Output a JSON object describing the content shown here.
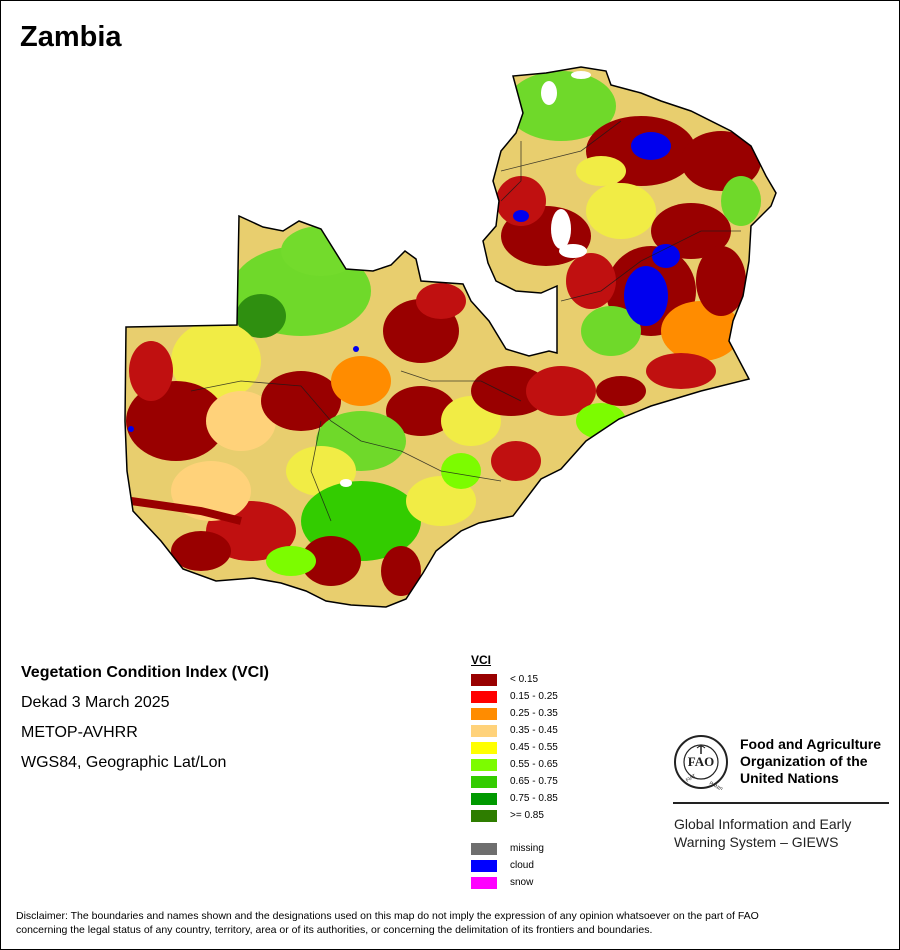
{
  "country": "Zambia",
  "info": {
    "index_name": "Vegetation Condition Index (VCI)",
    "period": "Dekad 3 March 2025",
    "sensor": "METOP-AVHRR",
    "projection": "WGS84, Geographic Lat/Lon"
  },
  "legend": {
    "title": "VCI",
    "classes": [
      {
        "label": "< 0.15",
        "color": "#990000"
      },
      {
        "label": "0.15 - 0.25",
        "color": "#ff0000"
      },
      {
        "label": "0.25 - 0.35",
        "color": "#ff8c00"
      },
      {
        "label": "0.35 - 0.45",
        "color": "#ffd27a"
      },
      {
        "label": "0.45 - 0.55",
        "color": "#ffff00"
      },
      {
        "label": "0.55 - 0.65",
        "color": "#7cfc00"
      },
      {
        "label": "0.65 - 0.75",
        "color": "#33cc00"
      },
      {
        "label": "0.75 - 0.85",
        "color": "#009900"
      },
      {
        "label": ">= 0.85",
        "color": "#2e7d00"
      }
    ],
    "special": [
      {
        "label": "missing",
        "color": "#6e6e6e"
      },
      {
        "label": "cloud",
        "color": "#0000ff"
      },
      {
        "label": "snow",
        "color": "#ff00ff"
      }
    ]
  },
  "org": {
    "emblem_text": "FIAT PANIS",
    "name_line1": "Food and Agriculture",
    "name_line2": "Organization of the",
    "name_line3": "United Nations",
    "system_line1": "Global Information and Early",
    "system_line2": "Warning System – GIEWS"
  },
  "disclaimer": {
    "line1": "Disclaimer: The boundaries and names shown and the designations used on this map do not imply the expression of any opinion whatsoever on the part of FAO",
    "line2": "concerning the legal status of any country, territory, area or of its authorities, or concerning the delimitation of its frontiers and boundaries."
  }
}
